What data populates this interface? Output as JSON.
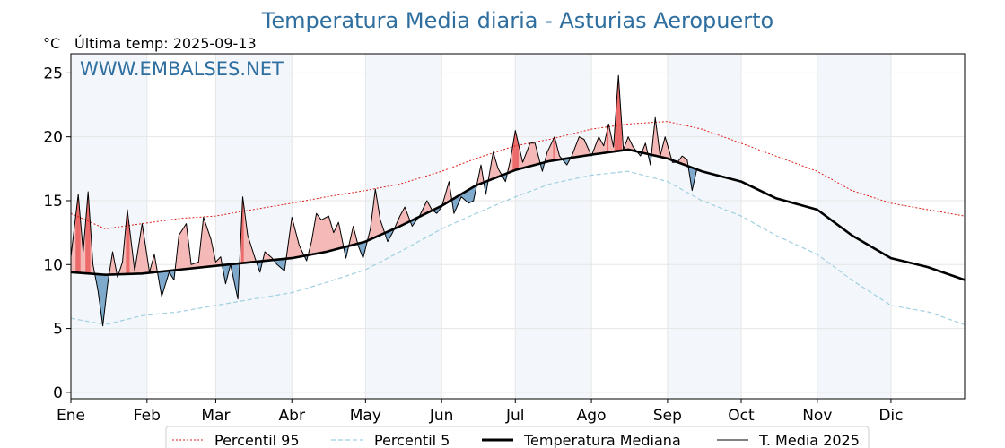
{
  "header": {
    "title": "Temperatura Media diaria - Asturias Aeropuerto",
    "unit": "°C",
    "last_temp": "Última temp: 2025-09-13",
    "watermark": "WWW.EMBALSES.NET"
  },
  "colors": {
    "title": "#2f6fa0",
    "p95": "#e0201a",
    "p5": "#9fcfe0",
    "median": "#000000",
    "media2025": "#000000",
    "above_fill": "#f4b9b7",
    "above_fill_strong": "#ec6a6a",
    "below_fill": "#7ea9cc",
    "band": "#f3f7fb"
  },
  "legend": {
    "placement": "bottom",
    "p95": "Percentil 95",
    "p5": "Percentil 5",
    "median": "Temperatura Mediana",
    "media2025": "T. Media 2025"
  },
  "chart_data": {
    "type": "line",
    "title": "Temperatura Media diaria - Asturias Aeropuerto",
    "ylabel": "°C",
    "ylim": [
      -0.5,
      26.5
    ],
    "yticks": [
      0,
      5,
      10,
      15,
      20,
      25
    ],
    "xlim": [
      1,
      365
    ],
    "xticks": [
      {
        "label": "Ene",
        "day": 1
      },
      {
        "label": "Feb",
        "day": 32
      },
      {
        "label": "Mar",
        "day": 60
      },
      {
        "label": "Abr",
        "day": 91
      },
      {
        "label": "May",
        "day": 121
      },
      {
        "label": "Jun",
        "day": 152
      },
      {
        "label": "Jul",
        "day": 182
      },
      {
        "label": "Ago",
        "day": 213
      },
      {
        "label": "Sep",
        "day": 244
      },
      {
        "label": "Oct",
        "day": 274
      },
      {
        "label": "Nov",
        "day": 305
      },
      {
        "label": "Dic",
        "day": 335
      }
    ],
    "grid": true,
    "series": [
      {
        "name": "Percentil 95",
        "style": "dotted",
        "x": [
          1,
          15,
          30,
          45,
          60,
          75,
          91,
          105,
          121,
          135,
          152,
          166,
          182,
          196,
          213,
          228,
          244,
          258,
          274,
          288,
          305,
          319,
          335,
          350,
          365
        ],
        "values": [
          14.0,
          12.8,
          13.2,
          13.6,
          13.8,
          14.3,
          14.8,
          15.3,
          15.8,
          16.3,
          17.3,
          18.3,
          19.3,
          19.8,
          20.6,
          21.0,
          21.2,
          20.6,
          19.5,
          18.5,
          17.3,
          15.8,
          14.8,
          14.3,
          13.8
        ]
      },
      {
        "name": "Percentil 5",
        "style": "dashed",
        "x": [
          1,
          15,
          30,
          45,
          60,
          75,
          91,
          105,
          121,
          135,
          152,
          166,
          182,
          196,
          213,
          228,
          244,
          258,
          274,
          288,
          305,
          319,
          335,
          350,
          365
        ],
        "values": [
          5.8,
          5.3,
          6.0,
          6.3,
          6.8,
          7.3,
          7.8,
          8.6,
          9.6,
          11.0,
          12.8,
          14.0,
          15.3,
          16.3,
          17.0,
          17.3,
          16.5,
          15.0,
          13.8,
          12.3,
          10.8,
          8.8,
          6.8,
          6.3,
          5.3
        ]
      },
      {
        "name": "Temperatura Mediana",
        "style": "thick",
        "x": [
          1,
          15,
          30,
          45,
          60,
          75,
          91,
          105,
          121,
          135,
          152,
          166,
          182,
          196,
          213,
          228,
          244,
          258,
          274,
          288,
          305,
          319,
          335,
          350,
          365
        ],
        "values": [
          9.4,
          9.2,
          9.3,
          9.6,
          9.9,
          10.2,
          10.5,
          11.0,
          11.8,
          13.0,
          14.6,
          16.2,
          17.4,
          18.1,
          18.6,
          19.0,
          18.3,
          17.3,
          16.5,
          15.2,
          14.3,
          12.3,
          10.5,
          9.8,
          8.8
        ]
      },
      {
        "name": "T. Media 2025",
        "style": "thin",
        "x": [
          1,
          4,
          6,
          8,
          10,
          12,
          14,
          16,
          18,
          20,
          22,
          24,
          27,
          30,
          33,
          35,
          38,
          41,
          43,
          45,
          48,
          50,
          53,
          55,
          58,
          60,
          62,
          64,
          66,
          69,
          71,
          73,
          76,
          78,
          80,
          83,
          85,
          88,
          91,
          94,
          97,
          99,
          101,
          103,
          106,
          108,
          110,
          113,
          116,
          118,
          120,
          123,
          125,
          127,
          130,
          132,
          135,
          137,
          140,
          143,
          146,
          148,
          150,
          152,
          155,
          157,
          160,
          163,
          165,
          168,
          170,
          173,
          175,
          178,
          180,
          182,
          185,
          188,
          190,
          193,
          195,
          198,
          200,
          203,
          205,
          208,
          210,
          213,
          216,
          218,
          220,
          222,
          224,
          226,
          228,
          230,
          233,
          235,
          237,
          239,
          241,
          243,
          246,
          248,
          250,
          252,
          254,
          256
        ],
        "values": [
          10.6,
          15.5,
          11.0,
          15.7,
          10.0,
          8.0,
          5.2,
          8.5,
          11.0,
          9.0,
          10.2,
          14.3,
          9.5,
          13.2,
          9.4,
          10.8,
          7.5,
          9.4,
          8.8,
          12.3,
          13.2,
          10.0,
          10.2,
          13.7,
          12.0,
          10.2,
          10.6,
          8.5,
          10.0,
          7.3,
          15.3,
          12.3,
          10.5,
          9.4,
          11.0,
          10.5,
          10.0,
          9.5,
          13.7,
          11.5,
          10.3,
          11.8,
          14.0,
          13.5,
          13.8,
          12.5,
          13.3,
          10.5,
          13.0,
          11.5,
          10.5,
          12.8,
          15.9,
          13.5,
          11.8,
          12.5,
          13.8,
          14.5,
          13.0,
          13.8,
          15.0,
          14.3,
          14.0,
          14.5,
          16.5,
          14.0,
          15.3,
          14.8,
          15.0,
          17.8,
          15.5,
          18.8,
          17.5,
          16.5,
          18.2,
          20.5,
          18.0,
          19.5,
          19.5,
          17.3,
          18.8,
          20.0,
          18.5,
          17.8,
          18.5,
          20.0,
          19.8,
          18.5,
          20.0,
          19.3,
          21.0,
          19.2,
          24.8,
          19.0,
          20.0,
          19.2,
          18.5,
          19.5,
          17.8,
          21.5,
          18.5,
          20.0,
          18.0,
          18.0,
          18.5,
          18.2,
          15.8,
          17.5
        ]
      }
    ]
  }
}
